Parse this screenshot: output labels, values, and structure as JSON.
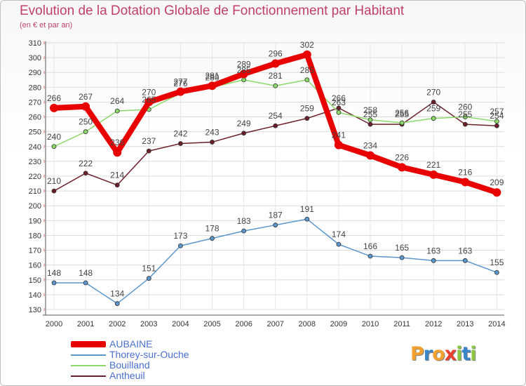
{
  "title": "Evolution de la Dotation Globale de Fonctionnement par Habitant",
  "subtitle": "(en € et par an)",
  "logo": {
    "text": "Proxiti",
    "letters": [
      "P",
      "r",
      "o",
      "x",
      "i",
      "t",
      "i"
    ],
    "colors": [
      "#f2a12e",
      "#3a86c8",
      "#f2a12e",
      "#e8402a",
      "#8cc63f",
      "#3a86c8",
      "#8cc63f"
    ]
  },
  "chart_data": {
    "type": "line",
    "title": "Evolution de la Dotation Globale de Fonctionnement par Habitant",
    "subtitle": "(en € et par an)",
    "xlabel": "",
    "ylabel": "",
    "x": [
      "2000",
      "2001",
      "2002",
      "2003",
      "2004",
      "2005",
      "2006",
      "2007",
      "2008",
      "2009",
      "2010",
      "2011",
      "2012",
      "2013",
      "2014"
    ],
    "ylim": [
      130,
      310
    ],
    "yticks": [
      130,
      140,
      150,
      160,
      170,
      180,
      190,
      200,
      210,
      220,
      230,
      240,
      250,
      260,
      270,
      280,
      290,
      300,
      310
    ],
    "grid": true,
    "legend_position": "bottom-left",
    "series": [
      {
        "name": "Antheuil",
        "color": "#6b1f2a",
        "values": [
          210,
          222,
          214,
          237,
          242,
          243,
          249,
          254,
          259,
          266,
          255,
          255,
          270,
          255,
          254
        ]
      },
      {
        "name": "Bouilland",
        "color": "#8cd96a",
        "values": [
          240,
          250,
          264,
          265,
          276,
          280,
          285,
          281,
          285,
          263,
          258,
          256,
          259,
          260,
          257
        ]
      },
      {
        "name": "Thorey-sur-Ouche",
        "color": "#5b96cc",
        "values": [
          148,
          148,
          134,
          151,
          173,
          178,
          183,
          187,
          191,
          174,
          166,
          165,
          163,
          163,
          155
        ]
      },
      {
        "name": "AUBAINE",
        "color": "#e80000",
        "values": [
          266,
          267,
          236,
          270,
          277,
          281,
          289,
          296,
          302,
          241,
          234,
          226,
          221,
          216,
          209
        ]
      }
    ],
    "legend": [
      "AUBAINE",
      "Thorey-sur-Ouche",
      "Bouilland",
      "Antheuil"
    ]
  }
}
